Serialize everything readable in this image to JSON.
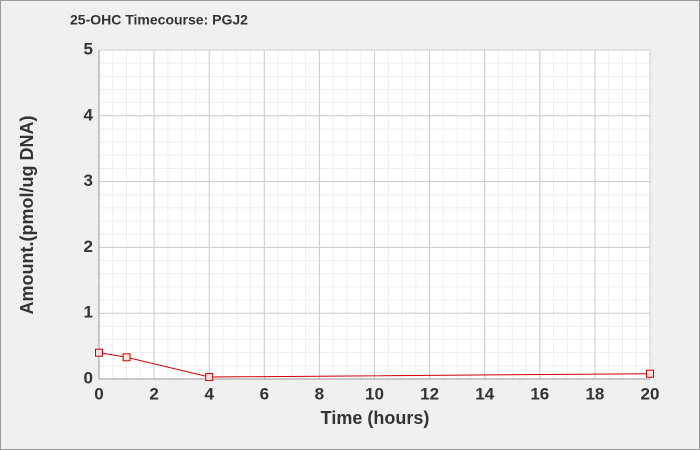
{
  "chart_data": {
    "type": "line",
    "title": "25-OHC Timecourse: PGJ2",
    "x_label": "Time (hours)",
    "y_label": "Amount.(pmol/ug DNA)",
    "x": [
      0,
      1,
      4,
      20
    ],
    "values": [
      0.4,
      0.33,
      0.03,
      0.08
    ],
    "color": "#cc0000",
    "xlim": [
      0,
      20
    ],
    "xticks": [
      0,
      2,
      4,
      6,
      8,
      10,
      12,
      14,
      16,
      18,
      20
    ],
    "ylim": [
      0,
      5
    ],
    "yticks": [
      0,
      1,
      2,
      3,
      4,
      5
    ],
    "grid": true
  }
}
